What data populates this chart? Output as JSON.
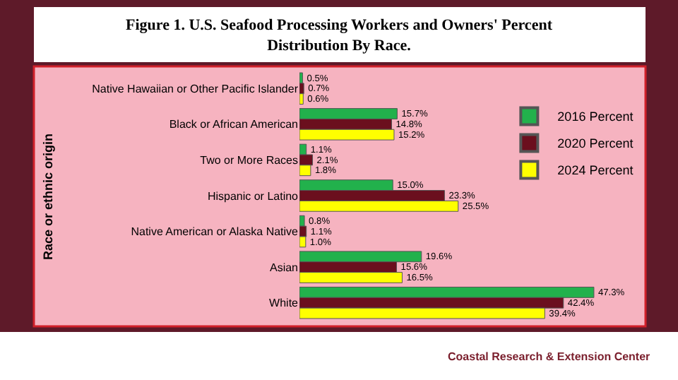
{
  "chart_data": {
    "type": "bar",
    "orientation": "horizontal",
    "title": "Figure 1. U.S. Seafood Processing Workers and Owners' Percent Distribution By Race.",
    "ylabel": "Race or ethnic origin",
    "categories": [
      "Native Hawaiian or Other Pacific Islander",
      "Black or African American",
      "Two or More Races",
      "Hispanic or Latino",
      "Native American or Alaska Native",
      "Asian",
      "White"
    ],
    "series": [
      {
        "name": "2016 Percent",
        "color": "#22b14c",
        "values": [
          0.5,
          15.7,
          1.1,
          15.0,
          0.8,
          19.6,
          47.3
        ],
        "value_labels": [
          "0.5%",
          "15.7%",
          "1.1%",
          "15.0%",
          "0.8%",
          "19.6%",
          "47.3%"
        ]
      },
      {
        "name": "2020 Percent",
        "color": "#6b0f1e",
        "values": [
          0.7,
          14.8,
          2.1,
          23.3,
          1.1,
          15.6,
          42.4
        ],
        "value_labels": [
          "0.7%",
          "14.8%",
          "2.1%",
          "23.3%",
          "1.1%",
          "15.6%",
          "42.4%"
        ]
      },
      {
        "name": "2024 Percent",
        "color": "#ffff00",
        "values": [
          0.6,
          15.2,
          1.8,
          25.5,
          1.0,
          16.5,
          39.4
        ],
        "value_labels": [
          "0.6%",
          "15.2%",
          "1.8%",
          "25.5%",
          "1.0%",
          "16.5%",
          "39.4%"
        ]
      }
    ],
    "legend": "right",
    "annotations": [
      "Coastal Research & Extension Center"
    ]
  }
}
